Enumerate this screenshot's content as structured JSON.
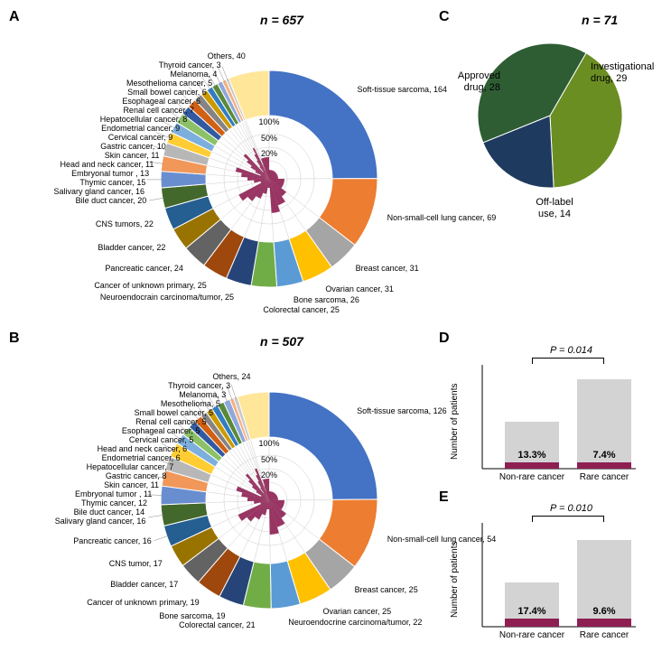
{
  "panels": {
    "A": {
      "n": 657,
      "slices": [
        {
          "label": "Soft-tissue sarcoma",
          "value": 164,
          "color": "#4472c4"
        },
        {
          "label": "Non-small-cell lung cancer",
          "value": 69,
          "color": "#ed7d31"
        },
        {
          "label": "Breast cancer",
          "value": 31,
          "color": "#a5a5a5"
        },
        {
          "label": "Ovarian cancer",
          "value": 31,
          "color": "#ffc000"
        },
        {
          "label": "Bone sarcoma",
          "value": 26,
          "color": "#5b9bd5"
        },
        {
          "label": "Colorectal cancer",
          "value": 25,
          "color": "#70ad47"
        },
        {
          "label": "Neuroendocrain carcinoma/tumor",
          "value": 25,
          "color": "#264478"
        },
        {
          "label": "Cancer of unknown primary",
          "value": 25,
          "color": "#9e480e"
        },
        {
          "label": "Pancreatic cancer",
          "value": 24,
          "color": "#636363"
        },
        {
          "label": "Bladder cancer",
          "value": 22,
          "color": "#997300"
        },
        {
          "label": "CNS tumors",
          "value": 22,
          "color": "#255e91"
        },
        {
          "label": "Bile duct cancer",
          "value": 20,
          "color": "#43682b"
        },
        {
          "label": "Salivary gland cancer",
          "value": 16,
          "color": "#698ed0"
        },
        {
          "label": "Thymic cancer",
          "value": 15,
          "color": "#f1975a"
        },
        {
          "label": "Embryonal tumor ",
          "value": 13,
          "color": "#b7b7b7"
        },
        {
          "label": "Head and neck cancer",
          "value": 11,
          "color": "#ffcd33"
        },
        {
          "label": "Skin cancer",
          "value": 11,
          "color": "#7cafdd"
        },
        {
          "label": "Gastric cancer",
          "value": 10,
          "color": "#8cc168"
        },
        {
          "label": "Cervical cancer",
          "value": 9,
          "color": "#335aa1"
        },
        {
          "label": "Endometrial cancer",
          "value": 9,
          "color": "#d26012"
        },
        {
          "label": "Hepatocellular cancer",
          "value": 8,
          "color": "#848484"
        },
        {
          "label": "Renal cell cancer",
          "value": 7,
          "color": "#cc9a00"
        },
        {
          "label": "Esophageal cancer",
          "value": 6,
          "color": "#327dc2"
        },
        {
          "label": "Small bowel cancer",
          "value": 6,
          "color": "#5a8a39"
        },
        {
          "label": "Mesothelioma cancer",
          "value": 5,
          "color": "#8fa8db"
        },
        {
          "label": "Melanoma",
          "value": 4,
          "color": "#f4b183"
        },
        {
          "label": "Thyroid cancer",
          "value": 3,
          "color": "#c9c9c9"
        },
        {
          "label": "Others",
          "value": 40,
          "color": "#ffe699"
        }
      ],
      "inner_scale": [
        "20%",
        "50%",
        "100%"
      ],
      "inner_color": "#8e1f52"
    },
    "B": {
      "n": 507,
      "slices": [
        {
          "label": "Soft-tissue sarcoma",
          "value": 126,
          "color": "#4472c4"
        },
        {
          "label": "Non-small-cell lung cancer",
          "value": 54,
          "color": "#ed7d31"
        },
        {
          "label": "Breast cancer",
          "value": 25,
          "color": "#a5a5a5"
        },
        {
          "label": "Ovarian cancer",
          "value": 25,
          "color": "#ffc000"
        },
        {
          "label": "Neuroendocrine carcinoma/tumor",
          "value": 22,
          "color": "#5b9bd5"
        },
        {
          "label": "Colorectal cancer",
          "value": 21,
          "color": "#70ad47"
        },
        {
          "label": "Bone sarcoma",
          "value": 19,
          "color": "#264478"
        },
        {
          "label": "Cancer of unknown primary",
          "value": 19,
          "color": "#9e480e"
        },
        {
          "label": "Bladder cancer",
          "value": 17,
          "color": "#636363"
        },
        {
          "label": "CNS tumor",
          "value": 17,
          "color": "#997300"
        },
        {
          "label": "Pancreatic cancer",
          "value": 16,
          "color": "#255e91"
        },
        {
          "label": "Salivary gland cancer",
          "value": 16,
          "color": "#43682b"
        },
        {
          "label": "Bile duct cancer",
          "value": 14,
          "color": "#698ed0"
        },
        {
          "label": "Thymic cancer",
          "value": 12,
          "color": "#f1975a"
        },
        {
          "label": "Embryonal tumor ",
          "value": 11,
          "color": "#b7b7b7"
        },
        {
          "label": "Skin cancer",
          "value": 11,
          "color": "#ffcd33"
        },
        {
          "label": "Gastric cancer",
          "value": 8,
          "color": "#7cafdd"
        },
        {
          "label": "Hepatocellular cancer",
          "value": 7,
          "color": "#8cc168"
        },
        {
          "label": "Endometrial cancer",
          "value": 6,
          "color": "#335aa1"
        },
        {
          "label": "Head and neck cancer",
          "value": 6,
          "color": "#d26012"
        },
        {
          "label": "Cervical cancer",
          "value": 5,
          "color": "#848484"
        },
        {
          "label": "Esophageal cancer",
          "value": 5,
          "color": "#cc9a00"
        },
        {
          "label": "Renal cell cancer",
          "value": 5,
          "color": "#327dc2"
        },
        {
          "label": "Small bowel cancer",
          "value": 5,
          "color": "#5a8a39"
        },
        {
          "label": "Mesothelioma",
          "value": 5,
          "color": "#8fa8db"
        },
        {
          "label": "Melanoma",
          "value": 3,
          "color": "#f4b183"
        },
        {
          "label": "Thyroid cancer",
          "value": 3,
          "color": "#c9c9c9"
        },
        {
          "label": "Others",
          "value": 24,
          "color": "#ffe699"
        }
      ],
      "inner_scale": [
        "20%",
        "50%",
        "100%"
      ],
      "inner_color": "#8e1f52"
    },
    "C": {
      "n": 71,
      "slices": [
        {
          "label": "Investigational drug",
          "value": 29,
          "color": "#6b8e23"
        },
        {
          "label": "Off-label use",
          "value": 14,
          "color": "#1f3a5f"
        },
        {
          "label": "Approved drug",
          "value": 28,
          "color": "#2e5d34"
        }
      ]
    },
    "D": {
      "ylabel": "Number of patients",
      "pval": "P = 0.014",
      "ymax": 500,
      "bars": [
        {
          "cat": "Non-rare cancer",
          "total": 225,
          "pct": 13.3,
          "pct_label": "13.3%"
        },
        {
          "cat": "Rare cancer",
          "total": 432,
          "pct": 7.4,
          "pct_label": "7.4%"
        }
      ],
      "colors": {
        "top": "#d3d3d3",
        "bot": "#8e1f52"
      }
    },
    "E": {
      "ylabel": "Number of patients",
      "pval": "P = 0.010",
      "ymax": 400,
      "bars": [
        {
          "cat": "Non-rare cancer",
          "total": 172,
          "pct": 17.4,
          "pct_label": "17.4%"
        },
        {
          "cat": "Rare cancer",
          "total": 335,
          "pct": 9.6,
          "pct_label": "9.6%"
        }
      ],
      "colors": {
        "top": "#d3d3d3",
        "bot": "#8e1f52"
      }
    }
  }
}
